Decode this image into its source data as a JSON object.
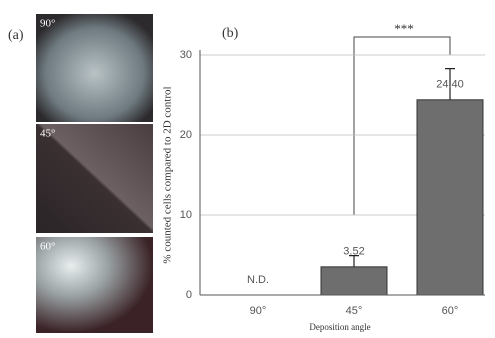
{
  "chart_data": {
    "type": "bar",
    "panel_label": "(b)",
    "categories": [
      "90°",
      "45°",
      "60°"
    ],
    "values": [
      null,
      3.52,
      24.4
    ],
    "value_labels": [
      "N.D.",
      "3.52",
      "24.40"
    ],
    "errors": [
      null,
      1.4,
      3.9
    ],
    "color": "#6e6e6e",
    "ylim": [
      0,
      30
    ],
    "yticks": [
      0,
      10,
      20,
      30
    ],
    "grid": true,
    "ylabel": "% counted cells compared to 2D control",
    "xlabel": "Deposition angle",
    "annotation": "***"
  },
  "images": {
    "panel_label": "(a)",
    "labels": [
      "90°",
      "45°",
      "60°"
    ]
  }
}
